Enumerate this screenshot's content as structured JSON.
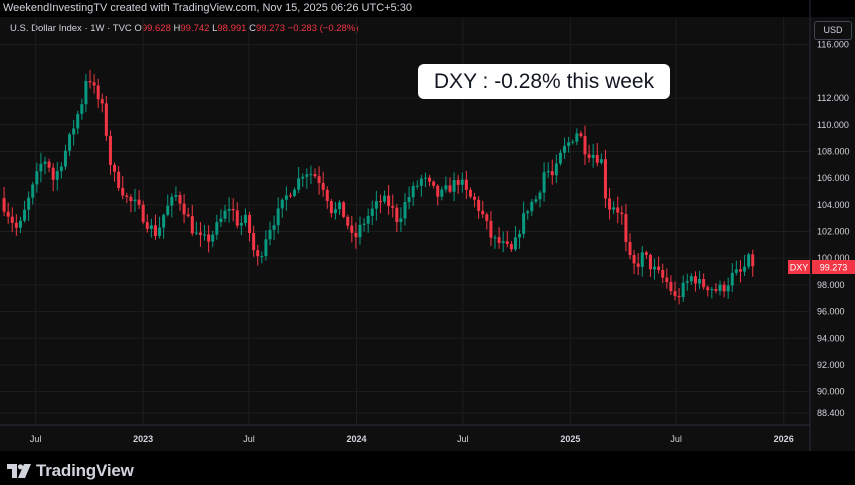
{
  "credit": "WeekendInvestingTV created with TradingView.com, Nov 15, 2025 06:26 UTC+5:30",
  "legend": {
    "title": "U.S. Dollar Index · 1W · TVC",
    "open_key": "O",
    "open": "99.628",
    "high_key": "H",
    "high": "99.742",
    "low_key": "L",
    "low": "98.991",
    "close_key": "C",
    "close": "99.273",
    "change": "−0.283 (−0.28%)"
  },
  "currency": "USD",
  "callout": "DXY : -0.28% this week",
  "last_price": {
    "symbol": "DXY",
    "value": "99.273"
  },
  "brand": "TradingView",
  "colors": {
    "up": "#089981",
    "down": "#f23645",
    "background": "#0f0f0f",
    "grid": "#1e1e1e"
  },
  "chart_data": {
    "type": "candlestick",
    "frequency": "weekly",
    "x_tick_labels": [
      "Jul",
      "2023",
      "Jul",
      "2024",
      "Jul",
      "2025",
      "Jul",
      "2026"
    ],
    "y_tick_labels": [
      "88.400",
      "90.000",
      "92.000",
      "94.000",
      "96.000",
      "98.000",
      "100.000",
      "102.000",
      "104.000",
      "106.000",
      "108.000",
      "110.000",
      "112.000",
      "116.000"
    ],
    "ylim": [
      87.5,
      118
    ],
    "x_range": [
      "2022-05-01",
      "2026-02-15"
    ],
    "approx_close_path": [
      [
        "2022-05-01",
        104.5
      ],
      [
        "2022-06-01",
        102.0
      ],
      [
        "2022-06-20",
        104.5
      ],
      [
        "2022-07-10",
        107.0
      ],
      [
        "2022-07-20",
        107.5
      ],
      [
        "2022-08-01",
        105.8
      ],
      [
        "2022-08-25",
        108.5
      ],
      [
        "2022-09-05",
        110.0
      ],
      [
        "2022-09-20",
        112.0
      ],
      [
        "2022-09-27",
        114.0
      ],
      [
        "2022-10-10",
        112.5
      ],
      [
        "2022-10-25",
        111.0
      ],
      [
        "2022-11-08",
        106.5
      ],
      [
        "2022-11-22",
        105.5
      ],
      [
        "2022-12-06",
        104.3
      ],
      [
        "2022-12-20",
        104.0
      ],
      [
        "2023-01-10",
        102.5
      ],
      [
        "2023-01-24",
        101.8
      ],
      [
        "2023-02-07",
        103.5
      ],
      [
        "2023-02-28",
        104.8
      ],
      [
        "2023-03-14",
        103.5
      ],
      [
        "2023-03-28",
        102.0
      ],
      [
        "2023-04-11",
        101.3
      ],
      [
        "2023-04-25",
        101.5
      ],
      [
        "2023-05-16",
        103.0
      ],
      [
        "2023-05-30",
        104.0
      ],
      [
        "2023-06-13",
        102.5
      ],
      [
        "2023-06-27",
        102.9
      ],
      [
        "2023-07-11",
        100.2
      ],
      [
        "2023-07-18",
        99.8
      ],
      [
        "2023-08-01",
        102.0
      ],
      [
        "2023-08-22",
        103.5
      ],
      [
        "2023-09-05",
        104.8
      ],
      [
        "2023-09-26",
        106.0
      ],
      [
        "2023-10-03",
        106.6
      ],
      [
        "2023-10-24",
        106.2
      ],
      [
        "2023-11-07",
        105.3
      ],
      [
        "2023-11-21",
        103.4
      ],
      [
        "2023-12-05",
        103.8
      ],
      [
        "2023-12-19",
        102.3
      ],
      [
        "2023-12-26",
        101.2
      ],
      [
        "2024-01-09",
        102.4
      ],
      [
        "2024-01-23",
        103.3
      ],
      [
        "2024-02-13",
        104.4
      ],
      [
        "2024-02-27",
        104.0
      ],
      [
        "2024-03-12",
        102.8
      ],
      [
        "2024-03-26",
        104.3
      ],
      [
        "2024-04-09",
        105.2
      ],
      [
        "2024-04-23",
        106.0
      ],
      [
        "2024-05-07",
        105.3
      ],
      [
        "2024-05-21",
        104.6
      ],
      [
        "2024-06-11",
        105.4
      ],
      [
        "2024-06-25",
        105.9
      ],
      [
        "2024-07-09",
        104.7
      ],
      [
        "2024-07-23",
        104.2
      ],
      [
        "2024-08-06",
        103.0
      ],
      [
        "2024-08-20",
        101.4
      ],
      [
        "2024-09-03",
        101.1
      ],
      [
        "2024-09-24",
        100.4
      ],
      [
        "2024-10-08",
        102.5
      ],
      [
        "2024-10-22",
        104.0
      ],
      [
        "2024-11-05",
        104.5
      ],
      [
        "2024-11-19",
        106.8
      ],
      [
        "2024-12-03",
        106.0
      ],
      [
        "2024-12-17",
        107.9
      ],
      [
        "2025-01-07",
        109.2
      ],
      [
        "2025-01-14",
        109.6
      ],
      [
        "2025-01-28",
        108.0
      ],
      [
        "2025-02-11",
        107.8
      ],
      [
        "2025-02-25",
        107.2
      ],
      [
        "2025-03-04",
        103.8
      ],
      [
        "2025-03-18",
        104.0
      ],
      [
        "2025-04-01",
        103.0
      ],
      [
        "2025-04-08",
        100.1
      ],
      [
        "2025-04-22",
        99.3
      ],
      [
        "2025-05-06",
        100.3
      ],
      [
        "2025-05-20",
        99.3
      ],
      [
        "2025-06-03",
        98.7
      ],
      [
        "2025-06-17",
        98.1
      ],
      [
        "2025-06-30",
        96.9
      ],
      [
        "2025-07-15",
        97.9
      ],
      [
        "2025-07-29",
        98.7
      ],
      [
        "2025-08-12",
        98.0
      ],
      [
        "2025-08-26",
        97.9
      ],
      [
        "2025-09-09",
        97.6
      ],
      [
        "2025-09-23",
        97.9
      ],
      [
        "2025-10-07",
        98.8
      ],
      [
        "2025-10-21",
        98.9
      ],
      [
        "2025-11-04",
        100.0
      ],
      [
        "2025-11-10",
        99.27
      ]
    ]
  }
}
